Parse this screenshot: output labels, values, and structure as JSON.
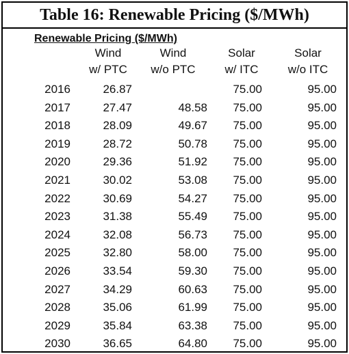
{
  "title": "Table 16: Renewable Pricing ($/MWh)",
  "table": {
    "caption": "Renewable Pricing ($/MWh)",
    "columns": [
      [
        "Wind",
        "w/ PTC"
      ],
      [
        "Wind",
        "w/o PTC"
      ],
      [
        "Solar",
        "w/ ITC"
      ],
      [
        "Solar",
        "w/o ITC"
      ]
    ],
    "rows": [
      [
        "2016",
        "26.87",
        null,
        "75.00",
        "95.00"
      ],
      [
        "2017",
        "27.47",
        "48.58",
        "75.00",
        "95.00"
      ],
      [
        "2018",
        "28.09",
        "49.67",
        "75.00",
        "95.00"
      ],
      [
        "2019",
        "28.72",
        "50.78",
        "75.00",
        "95.00"
      ],
      [
        "2020",
        "29.36",
        "51.92",
        "75.00",
        "95.00"
      ],
      [
        "2021",
        "30.02",
        "53.08",
        "75.00",
        "95.00"
      ],
      [
        "2022",
        "30.69",
        "54.27",
        "75.00",
        "95.00"
      ],
      [
        "2023",
        "31.38",
        "55.49",
        "75.00",
        "95.00"
      ],
      [
        "2024",
        "32.08",
        "56.73",
        "75.00",
        "95.00"
      ],
      [
        "2025",
        "32.80",
        "58.00",
        "75.00",
        "95.00"
      ],
      [
        "2026",
        "33.54",
        "59.30",
        "75.00",
        "95.00"
      ],
      [
        "2027",
        "34.29",
        "60.63",
        "75.00",
        "95.00"
      ],
      [
        "2028",
        "35.06",
        "61.99",
        "75.00",
        "95.00"
      ],
      [
        "2029",
        "35.84",
        "63.38",
        "75.00",
        "95.00"
      ],
      [
        "2030",
        "36.65",
        "64.80",
        "75.00",
        "95.00"
      ]
    ]
  }
}
